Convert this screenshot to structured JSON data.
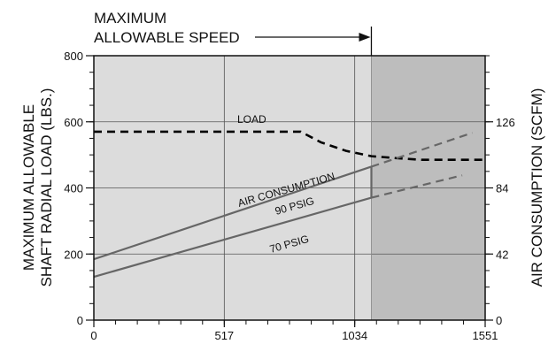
{
  "chart_data": {
    "type": "line",
    "annotation_top": [
      "MAXIMUM",
      "ALLOWABLE SPEED"
    ],
    "ylabel_left": [
      "MAXIMUM ALLOWABLE",
      "SHAFT RADIAL LOAD (LBS.)"
    ],
    "ylabel_right": "AIR CONSUMPTION (SCFM)",
    "x_ticks": [
      0,
      517,
      1034,
      1551
    ],
    "x_tick_labels": [
      "0",
      "517",
      "1034",
      "1551"
    ],
    "xlim": [
      0,
      1551
    ],
    "y_left_ticks": [
      0,
      200,
      400,
      600,
      800
    ],
    "y_left_tick_labels": [
      "0",
      "200",
      "400",
      "600",
      "800"
    ],
    "ylim_left": [
      0,
      800
    ],
    "y_right_ticks": [
      0,
      42,
      84,
      126
    ],
    "y_right_tick_labels": [
      "0",
      "42",
      "84",
      "126"
    ],
    "ylim_right": [
      0,
      168
    ],
    "max_speed_x": 1100,
    "shaded_region_x": [
      1100,
      1551
    ],
    "grid": true,
    "series": [
      {
        "name": "LOAD",
        "style": "dashed",
        "color": "#000000",
        "points": [
          [
            0,
            570
          ],
          [
            820,
            570
          ],
          [
            900,
            538
          ],
          [
            1000,
            512
          ],
          [
            1100,
            496
          ],
          [
            1200,
            490
          ],
          [
            1300,
            485
          ],
          [
            1551,
            485
          ]
        ]
      },
      {
        "name": "90 PSIG",
        "style": "solid",
        "color": "#666666",
        "points": [
          [
            0,
            38.7
          ],
          [
            1100,
            97.5
          ]
        ],
        "extension": [
          [
            1100,
            97.5
          ],
          [
            1500,
            119
          ]
        ]
      },
      {
        "name": "70 PSIG",
        "style": "solid",
        "color": "#666666",
        "points": [
          [
            0,
            27.5
          ],
          [
            1100,
            77.8
          ]
        ],
        "extension": [
          [
            1100,
            77.8
          ],
          [
            1460,
            92
          ]
        ]
      }
    ],
    "labels": {
      "load": "LOAD",
      "air_consumption": "AIR CONSUMPTION",
      "psig90": "90 PSIG",
      "psig70": "70 PSIG"
    }
  }
}
